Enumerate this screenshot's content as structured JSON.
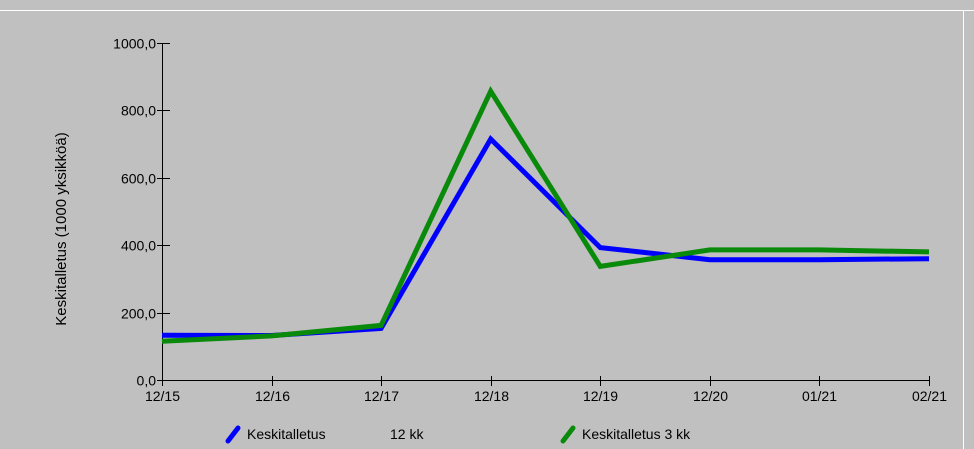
{
  "chart_data": {
    "type": "line",
    "title": "",
    "xlabel": "",
    "ylabel": "Keskitalletus (1000 yksikköä)",
    "categories": [
      "12/15",
      "12/16",
      "12/17",
      "12/18",
      "12/19",
      "12/20",
      "01/21",
      "02/21"
    ],
    "ylim": [
      0,
      1000
    ],
    "yticks": [
      "0,0",
      "200,0",
      "400,0",
      "600,0",
      "800,0",
      "1000,0"
    ],
    "ytick_values": [
      0,
      200,
      400,
      600,
      800,
      1000
    ],
    "grid": false,
    "legend_position": "bottom",
    "series": [
      {
        "name": "Keskitalletus",
        "legend_suffix": "12 kk",
        "color": "#0000ff",
        "values": [
          133,
          132,
          153,
          715,
          393,
          357,
          357,
          360
        ]
      },
      {
        "name": "Keskitalletus 3 kk",
        "color": "#0a8a0a",
        "values": [
          115,
          131,
          162,
          857,
          337,
          386,
          386,
          380
        ]
      }
    ],
    "background_color": "#c0c0c0"
  }
}
